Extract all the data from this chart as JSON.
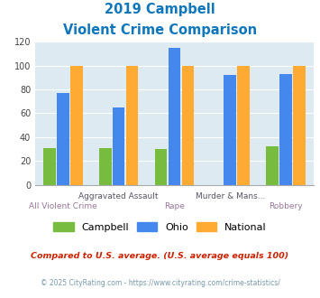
{
  "title_line1": "2019 Campbell",
  "title_line2": "Violent Crime Comparison",
  "categories": [
    "All Violent Crime",
    "Aggravated Assault",
    "Rape",
    "Murder & Mans...",
    "Robbery"
  ],
  "top_labels": {
    "1": "Aggravated Assault",
    "3": "Murder & Mans..."
  },
  "bot_labels": {
    "0": "All Violent Crime",
    "2": "Rape",
    "4": "Robbery"
  },
  "campbell": [
    31,
    31,
    30,
    0,
    32
  ],
  "ohio": [
    77,
    65,
    115,
    92,
    93
  ],
  "national": [
    100,
    100,
    100,
    100,
    100
  ],
  "campbell_color": "#77bb3f",
  "ohio_color": "#4488ee",
  "national_color": "#ffaa33",
  "bg_color": "#ddeaf2",
  "ylim": [
    0,
    120
  ],
  "yticks": [
    0,
    20,
    40,
    60,
    80,
    100,
    120
  ],
  "title_color": "#1177bb",
  "footnote1": "Compared to U.S. average. (U.S. average equals 100)",
  "footnote2": "© 2025 CityRating.com - https://www.cityrating.com/crime-statistics/",
  "footnote1_color": "#cc2200",
  "footnote2_color": "#7799aa",
  "url_color": "#3388cc",
  "legend_labels": [
    "Campbell",
    "Ohio",
    "National"
  ]
}
